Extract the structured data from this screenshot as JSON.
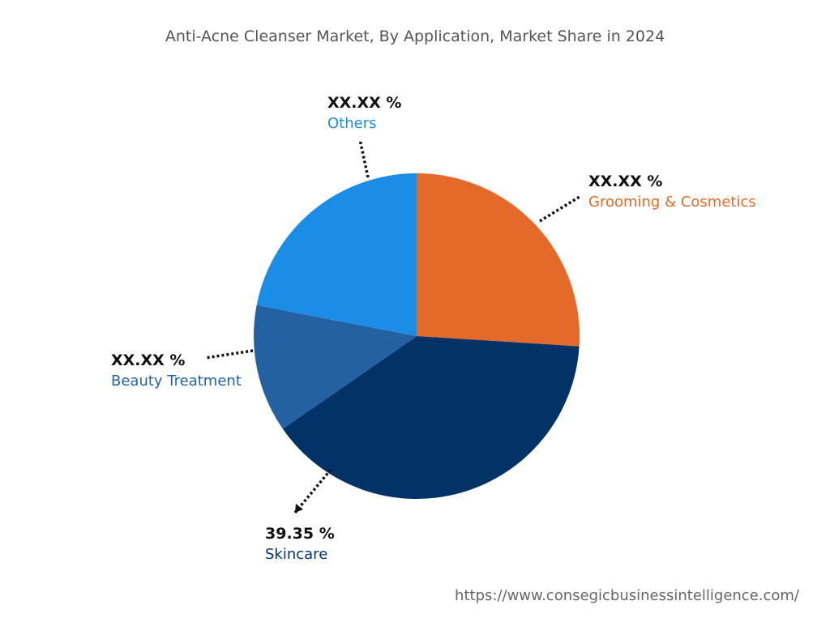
{
  "chart_data": {
    "type": "pie",
    "title": "Anti-Acne Cleanser Market, By Application, Market Share in 2024",
    "slices": [
      {
        "name": "Grooming & Cosmetics",
        "value": 26.0,
        "label": "XX.XX %",
        "color": "#E36A28"
      },
      {
        "name": "Skincare",
        "value": 39.35,
        "label": "39.35 %",
        "color": "#033366"
      },
      {
        "name": "Beauty Treatment",
        "value": 12.7,
        "label": "XX.XX %",
        "color": "#2361A3"
      },
      {
        "name": "Others",
        "value": 21.95,
        "label": "XX.XX %",
        "color": "#1C8DE6"
      }
    ],
    "start_angle": "12 o'clock",
    "direction": "clockwise"
  },
  "footer": {
    "url": "https://www.consegicbusinessintelligence.com/"
  }
}
